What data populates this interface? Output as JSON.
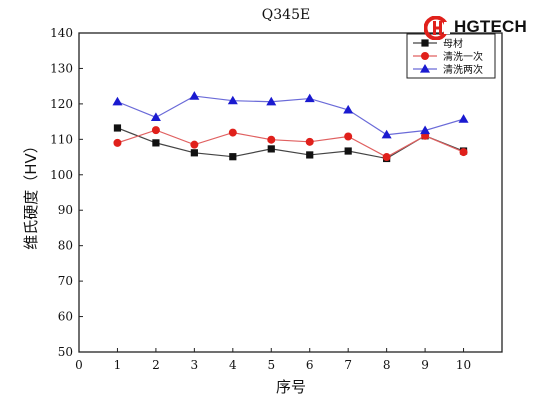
{
  "brand": {
    "name": "HGTECH",
    "color": "#e0201b"
  },
  "chart_data": {
    "type": "line",
    "title": "Q345E",
    "xlabel": "序号",
    "ylabel": "维氏硬度（HV）",
    "xlim": [
      0,
      11
    ],
    "ylim": [
      50,
      140
    ],
    "xticks": [
      0,
      1,
      2,
      3,
      4,
      5,
      6,
      7,
      8,
      9,
      10
    ],
    "yticks": [
      50,
      60,
      70,
      80,
      90,
      100,
      110,
      120,
      130,
      140
    ],
    "grid": false,
    "legend_position": "top-right",
    "x": [
      1,
      2,
      3,
      4,
      5,
      6,
      7,
      8,
      9,
      10
    ],
    "series": [
      {
        "name": "母材",
        "marker": "square",
        "color": "#111111",
        "line_color": "#444444",
        "values": [
          113.2,
          109.0,
          106.2,
          105.1,
          107.3,
          105.6,
          106.7,
          104.6,
          111.0,
          106.7
        ]
      },
      {
        "name": "清洗一次",
        "marker": "circle",
        "color": "#e0201b",
        "line_color": "#e06060",
        "values": [
          109.0,
          112.6,
          108.5,
          111.9,
          109.9,
          109.3,
          110.8,
          105.0,
          111.0,
          106.4
        ]
      },
      {
        "name": "清洗两次",
        "marker": "triangle",
        "color": "#1a1ad0",
        "line_color": "#6a6ad8",
        "values": [
          120.6,
          116.2,
          122.2,
          120.9,
          120.6,
          121.5,
          118.3,
          111.3,
          112.5,
          115.7
        ]
      }
    ]
  }
}
